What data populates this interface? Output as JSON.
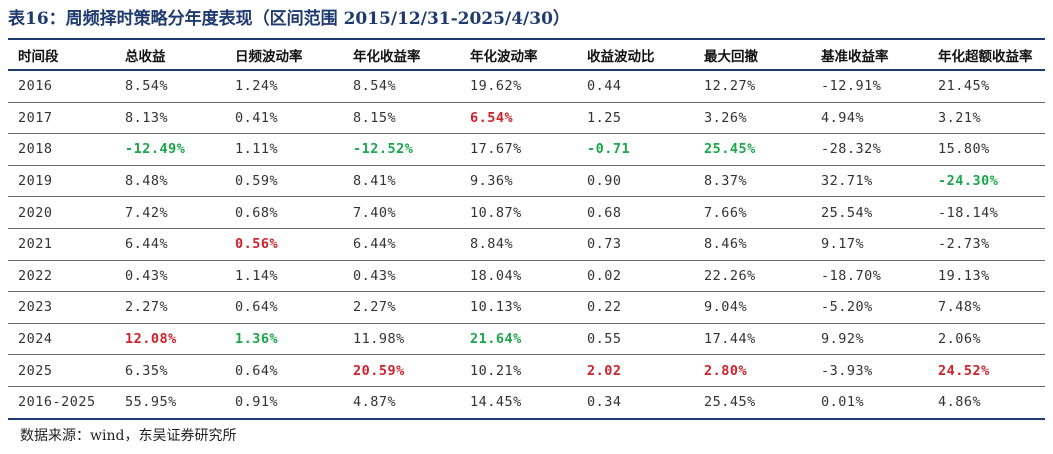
{
  "title": "表16：周频择时策略分年度表现（区间范围 2015/12/31-2025/4/30）",
  "source": "数据来源：wind，东吴证券研究所",
  "colors": {
    "positive_highlight": "#d0202a",
    "negative_highlight": "#1aa64a",
    "header_rule": "#1f3a6e"
  },
  "columns": [
    "时间段",
    "总收益",
    "日频波动率",
    "年化收益率",
    "年化波动率",
    "收益波动比",
    "最大回撤",
    "基准收益率",
    "年化超额收益率"
  ],
  "rows": [
    {
      "cells": [
        {
          "text": "2016",
          "hl": ""
        },
        {
          "text": "8.54%",
          "hl": ""
        },
        {
          "text": "1.24%",
          "hl": ""
        },
        {
          "text": "8.54%",
          "hl": ""
        },
        {
          "text": "19.62%",
          "hl": ""
        },
        {
          "text": "0.44",
          "hl": ""
        },
        {
          "text": "12.27%",
          "hl": ""
        },
        {
          "text": "-12.91%",
          "hl": ""
        },
        {
          "text": "21.45%",
          "hl": ""
        }
      ]
    },
    {
      "cells": [
        {
          "text": "2017",
          "hl": ""
        },
        {
          "text": "8.13%",
          "hl": ""
        },
        {
          "text": "0.41%",
          "hl": ""
        },
        {
          "text": "8.15%",
          "hl": ""
        },
        {
          "text": "6.54%",
          "hl": "red"
        },
        {
          "text": "1.25",
          "hl": ""
        },
        {
          "text": "3.26%",
          "hl": ""
        },
        {
          "text": "4.94%",
          "hl": ""
        },
        {
          "text": "3.21%",
          "hl": ""
        }
      ]
    },
    {
      "cells": [
        {
          "text": "2018",
          "hl": ""
        },
        {
          "text": "-12.49%",
          "hl": "green"
        },
        {
          "text": "1.11%",
          "hl": ""
        },
        {
          "text": "-12.52%",
          "hl": "green"
        },
        {
          "text": "17.67%",
          "hl": ""
        },
        {
          "text": "-0.71",
          "hl": "green"
        },
        {
          "text": "25.45%",
          "hl": "green"
        },
        {
          "text": "-28.32%",
          "hl": ""
        },
        {
          "text": "15.80%",
          "hl": ""
        }
      ]
    },
    {
      "cells": [
        {
          "text": "2019",
          "hl": ""
        },
        {
          "text": "8.48%",
          "hl": ""
        },
        {
          "text": "0.59%",
          "hl": ""
        },
        {
          "text": "8.41%",
          "hl": ""
        },
        {
          "text": "9.36%",
          "hl": ""
        },
        {
          "text": "0.90",
          "hl": ""
        },
        {
          "text": "8.37%",
          "hl": ""
        },
        {
          "text": "32.71%",
          "hl": ""
        },
        {
          "text": "-24.30%",
          "hl": "green"
        }
      ]
    },
    {
      "cells": [
        {
          "text": "2020",
          "hl": ""
        },
        {
          "text": "7.42%",
          "hl": ""
        },
        {
          "text": "0.68%",
          "hl": ""
        },
        {
          "text": "7.40%",
          "hl": ""
        },
        {
          "text": "10.87%",
          "hl": ""
        },
        {
          "text": "0.68",
          "hl": ""
        },
        {
          "text": "7.66%",
          "hl": ""
        },
        {
          "text": "25.54%",
          "hl": ""
        },
        {
          "text": "-18.14%",
          "hl": ""
        }
      ]
    },
    {
      "cells": [
        {
          "text": "2021",
          "hl": ""
        },
        {
          "text": "6.44%",
          "hl": ""
        },
        {
          "text": "0.56%",
          "hl": "red"
        },
        {
          "text": "6.44%",
          "hl": ""
        },
        {
          "text": "8.84%",
          "hl": ""
        },
        {
          "text": "0.73",
          "hl": ""
        },
        {
          "text": "8.46%",
          "hl": ""
        },
        {
          "text": "9.17%",
          "hl": ""
        },
        {
          "text": "-2.73%",
          "hl": ""
        }
      ]
    },
    {
      "cells": [
        {
          "text": "2022",
          "hl": ""
        },
        {
          "text": "0.43%",
          "hl": ""
        },
        {
          "text": "1.14%",
          "hl": ""
        },
        {
          "text": "0.43%",
          "hl": ""
        },
        {
          "text": "18.04%",
          "hl": ""
        },
        {
          "text": "0.02",
          "hl": ""
        },
        {
          "text": "22.26%",
          "hl": ""
        },
        {
          "text": "-18.70%",
          "hl": ""
        },
        {
          "text": "19.13%",
          "hl": ""
        }
      ]
    },
    {
      "cells": [
        {
          "text": "2023",
          "hl": ""
        },
        {
          "text": "2.27%",
          "hl": ""
        },
        {
          "text": "0.64%",
          "hl": ""
        },
        {
          "text": "2.27%",
          "hl": ""
        },
        {
          "text": "10.13%",
          "hl": ""
        },
        {
          "text": "0.22",
          "hl": ""
        },
        {
          "text": "9.04%",
          "hl": ""
        },
        {
          "text": "-5.20%",
          "hl": ""
        },
        {
          "text": "7.48%",
          "hl": ""
        }
      ]
    },
    {
      "cells": [
        {
          "text": "2024",
          "hl": ""
        },
        {
          "text": "12.08%",
          "hl": "red"
        },
        {
          "text": "1.36%",
          "hl": "green"
        },
        {
          "text": "11.98%",
          "hl": ""
        },
        {
          "text": "21.64%",
          "hl": "green"
        },
        {
          "text": "0.55",
          "hl": ""
        },
        {
          "text": "17.44%",
          "hl": ""
        },
        {
          "text": "9.92%",
          "hl": ""
        },
        {
          "text": "2.06%",
          "hl": ""
        }
      ]
    },
    {
      "cells": [
        {
          "text": "2025",
          "hl": ""
        },
        {
          "text": "6.35%",
          "hl": ""
        },
        {
          "text": "0.64%",
          "hl": ""
        },
        {
          "text": "20.59%",
          "hl": "red"
        },
        {
          "text": "10.21%",
          "hl": ""
        },
        {
          "text": "2.02",
          "hl": "red"
        },
        {
          "text": "2.80%",
          "hl": "red"
        },
        {
          "text": "-3.93%",
          "hl": ""
        },
        {
          "text": "24.52%",
          "hl": "red"
        }
      ]
    },
    {
      "cells": [
        {
          "text": "2016-2025",
          "hl": ""
        },
        {
          "text": "55.95%",
          "hl": ""
        },
        {
          "text": "0.91%",
          "hl": ""
        },
        {
          "text": "4.87%",
          "hl": ""
        },
        {
          "text": "14.45%",
          "hl": ""
        },
        {
          "text": "0.34",
          "hl": ""
        },
        {
          "text": "25.45%",
          "hl": ""
        },
        {
          "text": "0.01%",
          "hl": ""
        },
        {
          "text": "4.86%",
          "hl": ""
        }
      ]
    }
  ]
}
